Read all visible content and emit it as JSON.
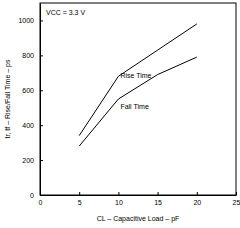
{
  "chart_data": {
    "type": "line",
    "x_label": "CL – Capacitive Load – pF",
    "y_label": "tr, tf – Rise/Fall Time – ps",
    "annotations": [
      "VCC = 3.3 V"
    ],
    "x": [
      5,
      10,
      15,
      20
    ],
    "series": [
      {
        "name": "Rise Time",
        "color": "#000000",
        "line_style": "solid",
        "values": [
          340,
          680,
          830,
          980
        ]
      },
      {
        "name": "Fall Time",
        "color": "#000000",
        "line_style": "solid",
        "values": [
          280,
          550,
          690,
          790
        ]
      }
    ],
    "xlim": [
      0,
      25
    ],
    "xticks": [
      0,
      5,
      10,
      15,
      20,
      25
    ],
    "ylim": [
      0,
      1100
    ],
    "yticks": [
      0,
      200,
      400,
      600,
      800,
      1000
    ],
    "grid": false
  }
}
